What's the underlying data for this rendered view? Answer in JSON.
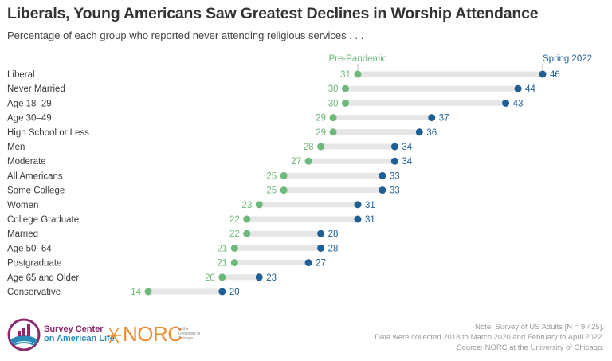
{
  "title": "Liberals, Young Americans Saw Greatest Declines in Worship Attendance",
  "subtitle": "Percentage of each group who reported never attending religious services . . .",
  "colors": {
    "pre": "#6db87a",
    "post": "#1f5f95",
    "connector": "#e6e6e6",
    "title": "#333333"
  },
  "chart_data": {
    "type": "dumbbell",
    "title": "Liberals, Young Americans Saw Greatest Declines in Worship Attendance",
    "subtitle": "Percentage of each group who reported never attending religious services . . .",
    "xlabel": "",
    "ylabel": "",
    "xlim": [
      14,
      46
    ],
    "grid": false,
    "legend": {
      "placement": "top",
      "entries": [
        "Pre-Pandemic",
        "Spring 2022"
      ]
    },
    "categories": [
      "Liberal",
      "Never Married",
      "Age 18–29",
      "Age 30–49",
      "High School or Less",
      "Men",
      "Moderate",
      "All Americans",
      "Some College",
      "Women",
      "College Graduate",
      "Married",
      "Age 50–64",
      "Postgraduate",
      "Age 65 and Older",
      "Conservative"
    ],
    "series": [
      {
        "name": "Pre-Pandemic",
        "values": [
          31,
          30,
          30,
          29,
          29,
          28,
          27,
          25,
          25,
          23,
          22,
          22,
          21,
          21,
          20,
          14
        ]
      },
      {
        "name": "Spring 2022",
        "values": [
          46,
          44,
          43,
          37,
          36,
          34,
          34,
          33,
          33,
          31,
          31,
          28,
          28,
          27,
          23,
          20
        ]
      }
    ]
  },
  "footer": {
    "note_lines": [
      "Note: Survey of US Adults [N = 9,425].",
      "Data were collected 2018 to March 2020 and February to April 2022.",
      "Source: NORC at the University of Chicago."
    ],
    "logo_sca_line1": "Survey Center",
    "logo_sca_line2": "on American Life",
    "logo_norc": "NORC",
    "logo_norc_sub": [
      "at the",
      "University of",
      "Chicago"
    ]
  }
}
